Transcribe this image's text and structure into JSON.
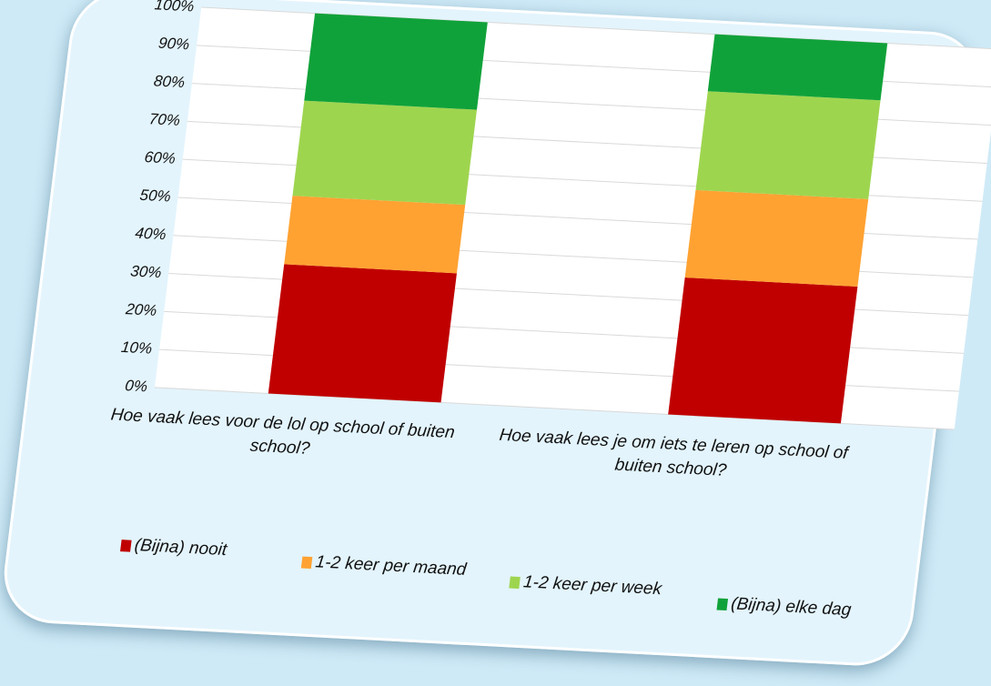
{
  "chart_data": {
    "type": "bar",
    "stacked": true,
    "categories": [
      "Hoe vaak lees voor de lol op school of buiten school?",
      "Hoe vaak lees je om iets te leren op school of buiten school?"
    ],
    "series": [
      {
        "name": "(Bijna) nooit",
        "values": [
          34,
          36
        ],
        "color": "#c00000"
      },
      {
        "name": "1-2 keer per maand",
        "values": [
          18,
          23
        ],
        "color": "#ffa232"
      },
      {
        "name": "1-2 keer per week",
        "values": [
          25,
          26
        ],
        "color": "#9ed54f"
      },
      {
        "name": "(Bijna) elke dag",
        "values": [
          23,
          15
        ],
        "color": "#10a23a"
      }
    ],
    "yticks": [
      "0%",
      "10%",
      "20%",
      "30%",
      "40%",
      "50%",
      "60%",
      "70%",
      "80%",
      "90%",
      "100%"
    ],
    "ylim": [
      0,
      100
    ],
    "grid": true,
    "legend": "bottom"
  }
}
